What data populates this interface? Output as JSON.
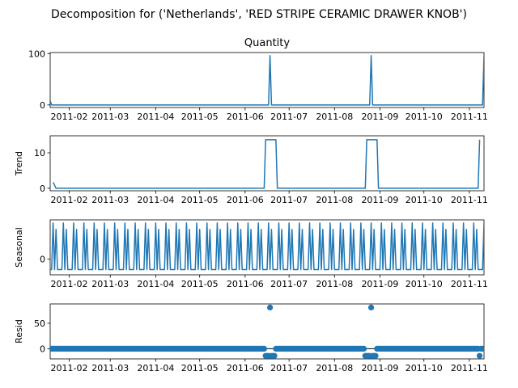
{
  "figure": {
    "suptitle": "Decomposition for ('Netherlands', 'RED STRIPE CERAMIC DRAWER KNOB')"
  },
  "colors": {
    "series": "#1f77b4",
    "axes": "#000000",
    "background": "#ffffff"
  },
  "chart_data": [
    {
      "type": "line",
      "title": "Quantity",
      "ylabel": "",
      "x_range": [
        "2011-01-19",
        "2011-11-11"
      ],
      "xticks": [
        "2011-02",
        "2011-03",
        "2011-04",
        "2011-05",
        "2011-06",
        "2011-07",
        "2011-08",
        "2011-09",
        "2011-10",
        "2011-11"
      ],
      "yticks": [
        0,
        100
      ],
      "ylim": [
        -5,
        102
      ],
      "grid": false,
      "series": [
        {
          "points": [
            [
              "2011-01-19",
              8
            ],
            [
              "2011-01-20",
              0
            ],
            [
              "2011-06-17",
              0
            ],
            [
              "2011-06-18",
              96
            ],
            [
              "2011-06-19",
              0
            ],
            [
              "2011-08-25",
              0
            ],
            [
              "2011-08-26",
              96
            ],
            [
              "2011-08-27",
              0
            ],
            [
              "2011-11-10",
              0
            ],
            [
              "2011-11-11",
              96
            ]
          ]
        }
      ]
    },
    {
      "type": "line",
      "title": "",
      "ylabel": "Trend",
      "x_range": [
        "2011-01-19",
        "2011-11-11"
      ],
      "xticks": [
        "2011-02",
        "2011-03",
        "2011-04",
        "2011-05",
        "2011-06",
        "2011-07",
        "2011-08",
        "2011-09",
        "2011-10",
        "2011-11"
      ],
      "yticks": [
        0,
        10
      ],
      "ylim": [
        -0.7,
        14.8
      ],
      "grid": false,
      "series": [
        {
          "points": [
            [
              "2011-01-21",
              1.7
            ],
            [
              "2011-01-23",
              0
            ],
            [
              "2011-06-14",
              0
            ],
            [
              "2011-06-15",
              13.7
            ],
            [
              "2011-06-22",
              13.7
            ],
            [
              "2011-06-23",
              0
            ],
            [
              "2011-08-22",
              0
            ],
            [
              "2011-08-23",
              13.7
            ],
            [
              "2011-08-30",
              13.7
            ],
            [
              "2011-08-31",
              0
            ],
            [
              "2011-11-07",
              0
            ],
            [
              "2011-11-08",
              13.7
            ]
          ]
        }
      ]
    },
    {
      "type": "line",
      "title": "",
      "ylabel": "Seasonal",
      "x_range": [
        "2011-01-19",
        "2011-11-11"
      ],
      "xticks": [
        "2011-02",
        "2011-03",
        "2011-04",
        "2011-05",
        "2011-06",
        "2011-07",
        "2011-08",
        "2011-09",
        "2011-10",
        "2011-11"
      ],
      "yticks": [
        0
      ],
      "ylim": [
        -0.75,
        1.85
      ],
      "grid": false,
      "period_days": 7,
      "weekly_pattern": [
        -0.5,
        -0.5,
        1.7,
        -0.5,
        1.4,
        -0.5,
        -0.5
      ],
      "series": [
        {
          "start": "2011-01-19",
          "end": "2011-11-11"
        }
      ]
    },
    {
      "type": "scatter",
      "title": "",
      "ylabel": "Resid",
      "x_range": [
        "2011-01-19",
        "2011-11-11"
      ],
      "xticks": [
        "2011-02",
        "2011-03",
        "2011-04",
        "2011-05",
        "2011-06",
        "2011-07",
        "2011-08",
        "2011-09",
        "2011-10",
        "2011-11"
      ],
      "yticks": [
        0,
        50
      ],
      "ylim": [
        -20,
        88
      ],
      "grid": false,
      "baseline": 0,
      "baseline_start": "2011-01-20",
      "baseline_end": "2011-11-10",
      "outliers": [
        [
          "2011-06-15",
          -14
        ],
        [
          "2011-06-16",
          -14
        ],
        [
          "2011-06-17",
          -14
        ],
        [
          "2011-06-18",
          81
        ],
        [
          "2011-06-19",
          -14
        ],
        [
          "2011-06-20",
          -14
        ],
        [
          "2011-06-21",
          -14
        ],
        [
          "2011-08-22",
          -14
        ],
        [
          "2011-08-23",
          -14
        ],
        [
          "2011-08-24",
          -14
        ],
        [
          "2011-08-25",
          -14
        ],
        [
          "2011-08-26",
          81
        ],
        [
          "2011-08-27",
          -14
        ],
        [
          "2011-08-28",
          -14
        ],
        [
          "2011-08-29",
          -14
        ],
        [
          "2011-11-08",
          -14
        ]
      ]
    }
  ]
}
